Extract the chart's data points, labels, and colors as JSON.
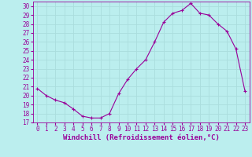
{
  "hours": [
    0,
    1,
    2,
    3,
    4,
    5,
    6,
    7,
    8,
    9,
    10,
    11,
    12,
    13,
    14,
    15,
    16,
    17,
    18,
    19,
    20,
    21,
    22,
    23
  ],
  "values": [
    20.8,
    20.0,
    19.5,
    19.2,
    18.5,
    17.7,
    17.5,
    17.5,
    18.0,
    20.2,
    21.8,
    23.0,
    24.0,
    26.0,
    28.2,
    29.2,
    29.5,
    30.3,
    29.2,
    29.0,
    28.0,
    27.2,
    25.2,
    20.5
  ],
  "line_color": "#990099",
  "marker": "+",
  "marker_size": 3,
  "bg_color": "#bbeeee",
  "grid_color": "#aadddd",
  "ylabel_ticks": [
    17,
    18,
    19,
    20,
    21,
    22,
    23,
    24,
    25,
    26,
    27,
    28,
    29,
    30
  ],
  "xlabel": "Windchill (Refroidissement éolien,°C)",
  "xlim": [
    -0.5,
    23.5
  ],
  "ylim": [
    17,
    30.5
  ],
  "tick_color": "#990099",
  "label_color": "#990099",
  "tick_fontsize": 5.5,
  "xlabel_fontsize": 6.5
}
